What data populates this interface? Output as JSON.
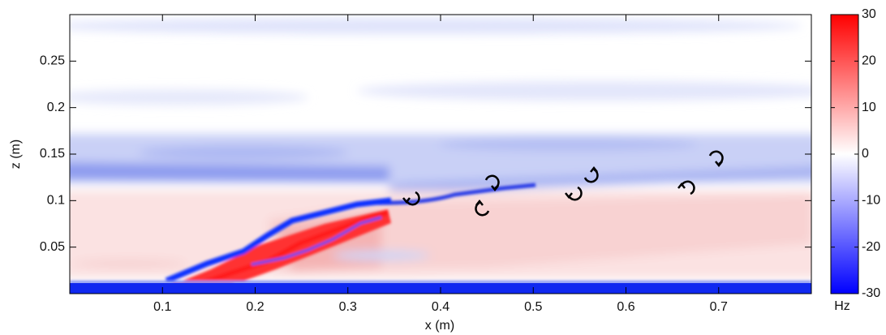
{
  "chart_data": {
    "type": "heatmap",
    "xlabel": "x (m)",
    "ylabel": "z (m)",
    "xlim": [
      0,
      0.8
    ],
    "ylim": [
      0,
      0.3
    ],
    "xticks": [
      0.1,
      0.2,
      0.3,
      0.4,
      0.5,
      0.6,
      0.7
    ],
    "yticks": [
      0.05,
      0.1,
      0.15,
      0.2,
      0.25
    ],
    "colorbar": {
      "label": "Hz",
      "lim": [
        -30,
        30
      ],
      "ticks": [
        30,
        20,
        10,
        0,
        -10,
        -20,
        -30
      ],
      "colors": [
        "#0000ff",
        "#ffffff",
        "#ff0000"
      ]
    }
  }
}
